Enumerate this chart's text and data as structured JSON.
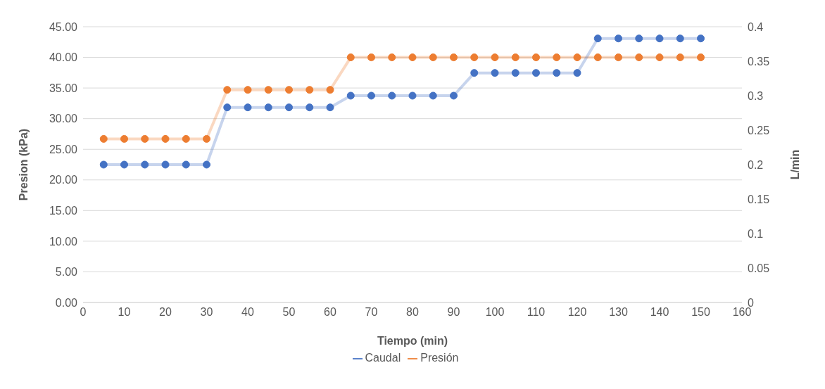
{
  "chart_data": {
    "type": "line",
    "xlabel": "Tiempo (min)",
    "ylabel": "Presion (kPa)",
    "y2label": "L/min",
    "x": [
      5,
      10,
      15,
      20,
      25,
      30,
      35,
      40,
      45,
      50,
      55,
      60,
      65,
      70,
      75,
      80,
      85,
      90,
      95,
      100,
      105,
      110,
      115,
      120,
      125,
      130,
      135,
      140,
      145,
      150
    ],
    "series": [
      {
        "name": "Presión",
        "color": "#ed7d31",
        "values": [
          26.7,
          26.7,
          26.7,
          26.7,
          26.7,
          26.7,
          34.7,
          34.7,
          34.7,
          34.7,
          34.7,
          34.7,
          40,
          40,
          40,
          40,
          40,
          40,
          40,
          40,
          40,
          40,
          40,
          40,
          40,
          40,
          40,
          40,
          40,
          40
        ]
      },
      {
        "name": "Caudal",
        "color": "#4472c4",
        "axis": "y2",
        "values": [
          0.2,
          0.2,
          0.2,
          0.2,
          0.2,
          0.2,
          0.283,
          0.283,
          0.283,
          0.283,
          0.283,
          0.283,
          0.3,
          0.3,
          0.3,
          0.3,
          0.3,
          0.3,
          0.333,
          0.333,
          0.333,
          0.333,
          0.333,
          0.333,
          0.383,
          0.383,
          0.383,
          0.383,
          0.383,
          0.383
        ]
      }
    ],
    "xlim": [
      0,
      160
    ],
    "xticks": [
      0,
      10,
      20,
      30,
      40,
      50,
      60,
      70,
      80,
      90,
      100,
      110,
      120,
      130,
      140,
      150,
      160
    ],
    "ylim": [
      0,
      45
    ],
    "yticks": [
      {
        "value": 0,
        "label": "0.00"
      },
      {
        "value": 5,
        "label": "5.00"
      },
      {
        "value": 10,
        "label": "10.00"
      },
      {
        "value": 15,
        "label": "15.00"
      },
      {
        "value": 20,
        "label": "20.00"
      },
      {
        "value": 25,
        "label": "25.00"
      },
      {
        "value": 30,
        "label": "30.00"
      },
      {
        "value": 35,
        "label": "35.00"
      },
      {
        "value": 40,
        "label": "40.00"
      },
      {
        "value": 45,
        "label": "45.00"
      }
    ],
    "y2lim": [
      0,
      0.4
    ],
    "y2ticks": [
      0,
      0.05,
      0.1,
      0.15,
      0.2,
      0.25,
      0.3,
      0.35,
      0.4
    ],
    "grid": "y",
    "legend": "bottom",
    "marker": "circle",
    "line_style": "solid"
  }
}
